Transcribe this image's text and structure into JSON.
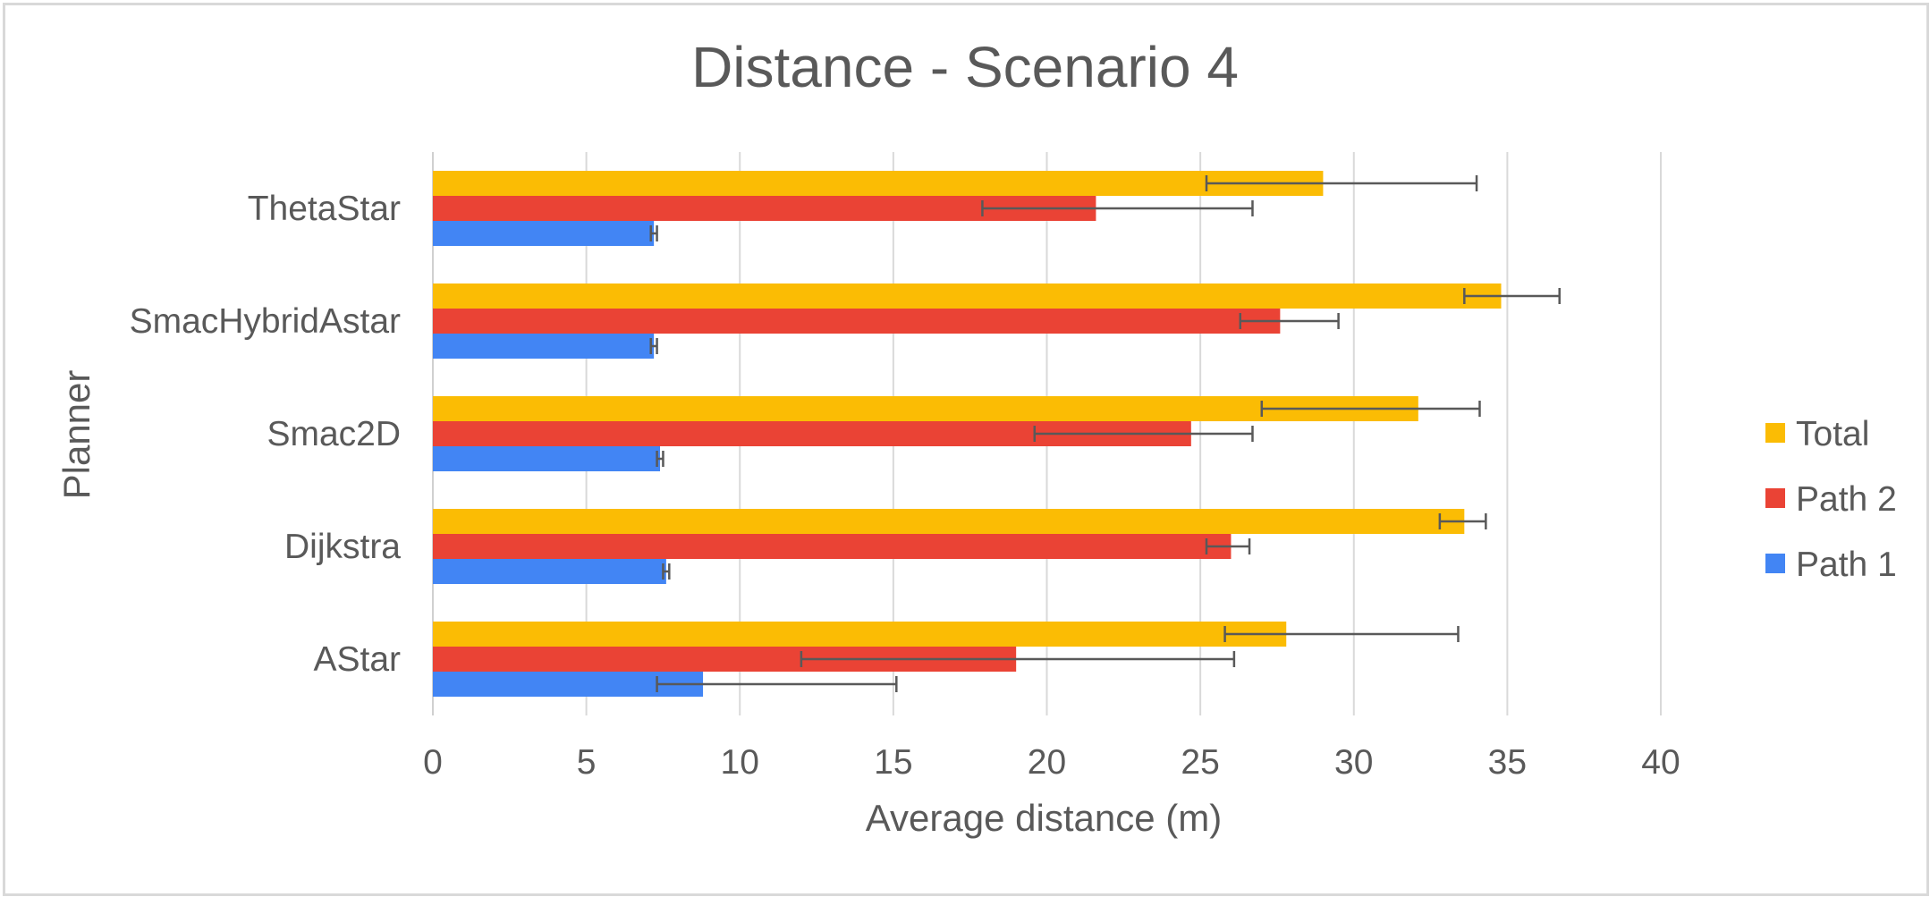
{
  "chart_data": {
    "type": "bar",
    "orientation": "horizontal",
    "title": "Distance  - Scenario 4",
    "xlabel": "Average distance (m)",
    "ylabel": "Planner",
    "xlim": [
      0,
      40
    ],
    "x_ticks": [
      0,
      5,
      10,
      15,
      20,
      25,
      30,
      35,
      40
    ],
    "grid": "vertical",
    "legend_position": "right",
    "categories": [
      "AStar",
      "Dijkstra",
      "Smac2D",
      "SmacHybridAstar",
      "ThetaStar"
    ],
    "series": [
      {
        "name": "Path 1",
        "color": "#4285F4",
        "values": [
          8.8,
          7.6,
          7.4,
          7.2,
          7.2
        ],
        "error": [
          [
            7.3,
            15.1
          ],
          [
            7.5,
            7.7
          ],
          [
            7.3,
            7.5
          ],
          [
            7.1,
            7.3
          ],
          [
            7.1,
            7.3
          ]
        ]
      },
      {
        "name": "Path 2",
        "color": "#EA4335",
        "values": [
          19.0,
          26.0,
          24.7,
          27.6,
          21.6
        ],
        "error": [
          [
            12.0,
            26.1
          ],
          [
            25.2,
            26.6
          ],
          [
            19.6,
            26.7
          ],
          [
            26.3,
            29.5
          ],
          [
            17.9,
            26.7
          ]
        ]
      },
      {
        "name": "Total",
        "color": "#FBBC04",
        "values": [
          27.8,
          33.6,
          32.1,
          34.8,
          29.0
        ],
        "error": [
          [
            25.8,
            33.4
          ],
          [
            32.8,
            34.3
          ],
          [
            27.0,
            34.1
          ],
          [
            33.6,
            36.7
          ],
          [
            25.2,
            34.0
          ]
        ]
      }
    ],
    "legend_order": [
      "Total",
      "Path 2",
      "Path 1"
    ]
  }
}
